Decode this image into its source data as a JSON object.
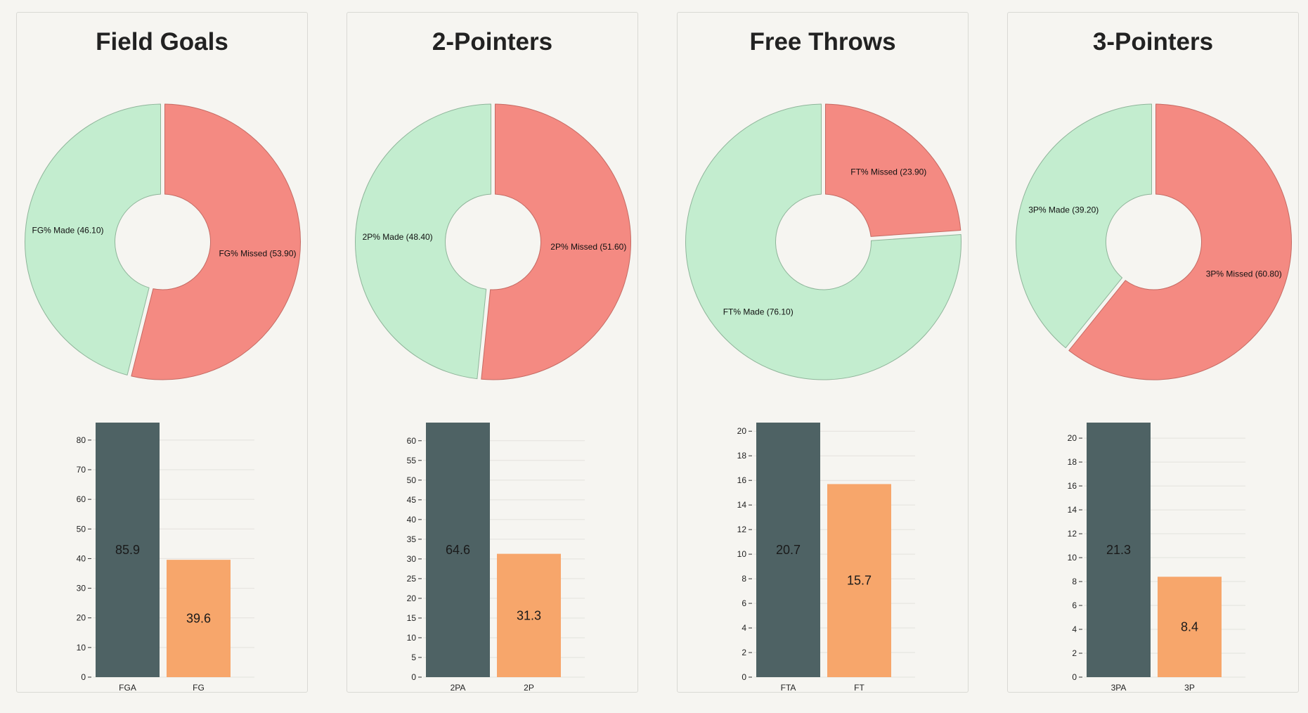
{
  "colors": {
    "made": "#c3edcf",
    "missed": "#f48a82",
    "attempts": "#4e6264",
    "makes": "#f7a66b"
  },
  "chart_data": [
    {
      "type": "pie",
      "title": "Field Goals",
      "slices": [
        {
          "label": "FG% Made (46.10)",
          "value": 46.1,
          "kind": "made"
        },
        {
          "label": "FG% Missed (53.90)",
          "value": 53.9,
          "kind": "missed"
        }
      ],
      "bar_chart": {
        "type": "bar",
        "categories": [
          "FGA",
          "FG"
        ],
        "values": [
          85.9,
          39.6
        ],
        "value_labels": [
          "85.9",
          "39.6"
        ],
        "ylim": [
          0,
          85.9
        ],
        "yticks": [
          0,
          10,
          20,
          30,
          40,
          50,
          60,
          70,
          80
        ]
      }
    },
    {
      "type": "pie",
      "title": "2-Pointers",
      "slices": [
        {
          "label": "2P% Made (48.40)",
          "value": 48.4,
          "kind": "made"
        },
        {
          "label": "2P% Missed (51.60)",
          "value": 51.6,
          "kind": "missed"
        }
      ],
      "bar_chart": {
        "type": "bar",
        "categories": [
          "2PA",
          "2P"
        ],
        "values": [
          64.6,
          31.3
        ],
        "value_labels": [
          "64.6",
          "31.3"
        ],
        "ylim": [
          0,
          64.6
        ],
        "yticks": [
          0,
          5,
          10,
          15,
          20,
          25,
          30,
          35,
          40,
          45,
          50,
          55,
          60
        ]
      }
    },
    {
      "type": "pie",
      "title": "Free Throws",
      "slices": [
        {
          "label": "FT% Made (76.10)",
          "value": 76.1,
          "kind": "made"
        },
        {
          "label": "FT% Missed (23.90)",
          "value": 23.9,
          "kind": "missed"
        }
      ],
      "bar_chart": {
        "type": "bar",
        "categories": [
          "FTA",
          "FT"
        ],
        "values": [
          20.7,
          15.7
        ],
        "value_labels": [
          "20.7",
          "15.7"
        ],
        "ylim": [
          0,
          20.7
        ],
        "yticks": [
          0,
          2,
          4,
          6,
          8,
          10,
          12,
          14,
          16,
          18,
          20
        ]
      }
    },
    {
      "type": "pie",
      "title": "3-Pointers",
      "slices": [
        {
          "label": "3P% Made (39.20)",
          "value": 39.2,
          "kind": "made"
        },
        {
          "label": "3P% Missed (60.80)",
          "value": 60.8,
          "kind": "missed"
        }
      ],
      "bar_chart": {
        "type": "bar",
        "categories": [
          "3PA",
          "3P"
        ],
        "values": [
          21.3,
          8.4
        ],
        "value_labels": [
          "21.3",
          "8.4"
        ],
        "ylim": [
          0,
          21.3
        ],
        "yticks": [
          0,
          2,
          4,
          6,
          8,
          10,
          12,
          14,
          16,
          18,
          20
        ]
      }
    }
  ]
}
